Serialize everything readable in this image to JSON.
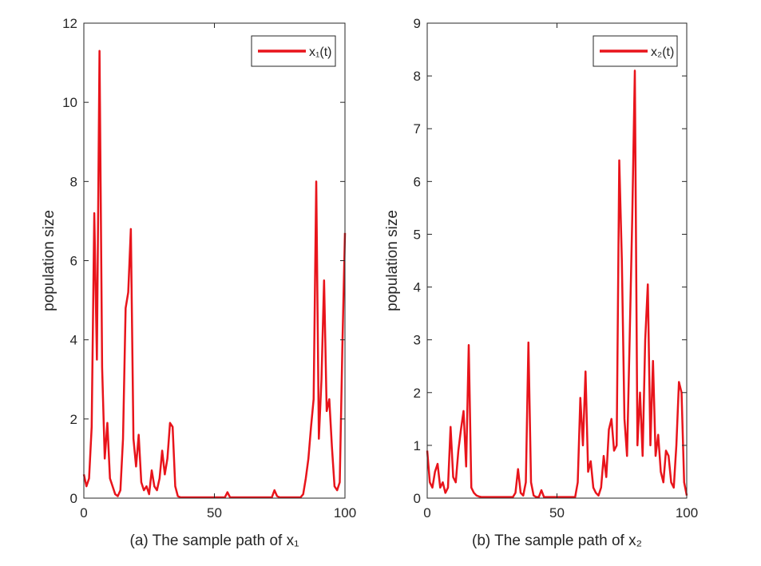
{
  "chart_data": [
    {
      "type": "line",
      "xlabel": "(a) The sample path of x₁",
      "ylabel": "population size",
      "x": [
        0,
        1,
        2,
        3,
        4,
        5,
        6,
        7,
        8,
        9,
        10,
        11,
        12,
        13,
        14,
        15,
        16,
        17,
        18,
        19,
        20,
        21,
        22,
        23,
        24,
        25,
        26,
        27,
        28,
        29,
        30,
        31,
        32,
        33,
        34,
        35,
        36,
        37,
        38,
        39,
        40,
        41,
        42,
        43,
        44,
        45,
        46,
        47,
        48,
        49,
        50,
        51,
        52,
        53,
        54,
        55,
        56,
        57,
        58,
        59,
        60,
        61,
        62,
        63,
        64,
        65,
        66,
        67,
        68,
        69,
        70,
        71,
        72,
        73,
        74,
        75,
        76,
        77,
        78,
        79,
        80,
        81,
        82,
        83,
        84,
        85,
        86,
        87,
        88,
        89,
        90,
        91,
        92,
        93,
        94,
        95,
        96,
        97,
        98,
        99,
        100
      ],
      "series": [
        {
          "name": "x₁(t)",
          "color": "#e8141b",
          "values": [
            0.6,
            0.3,
            0.5,
            1.8,
            7.2,
            3.5,
            11.3,
            3.3,
            1.0,
            1.9,
            0.5,
            0.3,
            0.1,
            0.05,
            0.2,
            1.5,
            4.8,
            5.2,
            6.8,
            1.5,
            0.8,
            1.6,
            0.4,
            0.2,
            0.3,
            0.1,
            0.7,
            0.3,
            0.2,
            0.5,
            1.2,
            0.6,
            1.0,
            1.9,
            1.8,
            0.3,
            0.05,
            0.02,
            0.02,
            0.02,
            0.02,
            0.02,
            0.02,
            0.02,
            0.02,
            0.02,
            0.02,
            0.02,
            0.02,
            0.02,
            0.02,
            0.02,
            0.02,
            0.02,
            0.02,
            0.15,
            0.02,
            0.02,
            0.02,
            0.02,
            0.02,
            0.02,
            0.02,
            0.02,
            0.02,
            0.02,
            0.02,
            0.02,
            0.02,
            0.02,
            0.02,
            0.02,
            0.02,
            0.2,
            0.05,
            0.02,
            0.02,
            0.02,
            0.02,
            0.02,
            0.02,
            0.02,
            0.02,
            0.02,
            0.1,
            0.5,
            1.0,
            1.8,
            2.5,
            8.0,
            1.5,
            3.0,
            5.5,
            2.2,
            2.5,
            1.3,
            0.3,
            0.2,
            0.4,
            3.8,
            6.7
          ]
        }
      ],
      "xlim": [
        0,
        100
      ],
      "xticks": [
        0,
        50,
        100
      ],
      "ylim": [
        0,
        12
      ],
      "yticks": [
        0,
        2,
        4,
        6,
        8,
        10,
        12
      ],
      "legend": "upper right"
    },
    {
      "type": "line",
      "xlabel": "(b) The sample path of x₂",
      "ylabel": "population size",
      "x": [
        0,
        1,
        2,
        3,
        4,
        5,
        6,
        7,
        8,
        9,
        10,
        11,
        12,
        13,
        14,
        15,
        16,
        17,
        18,
        19,
        20,
        21,
        22,
        23,
        24,
        25,
        26,
        27,
        28,
        29,
        30,
        31,
        32,
        33,
        34,
        35,
        36,
        37,
        38,
        39,
        40,
        41,
        42,
        43,
        44,
        45,
        46,
        47,
        48,
        49,
        50,
        51,
        52,
        53,
        54,
        55,
        56,
        57,
        58,
        59,
        60,
        61,
        62,
        63,
        64,
        65,
        66,
        67,
        68,
        69,
        70,
        71,
        72,
        73,
        74,
        75,
        76,
        77,
        78,
        79,
        80,
        81,
        82,
        83,
        84,
        85,
        86,
        87,
        88,
        89,
        90,
        91,
        92,
        93,
        94,
        95,
        96,
        97,
        98,
        99,
        100
      ],
      "series": [
        {
          "name": "x₂(t)",
          "color": "#e8141b",
          "values": [
            0.9,
            0.3,
            0.2,
            0.5,
            0.65,
            0.2,
            0.3,
            0.1,
            0.2,
            1.35,
            0.4,
            0.3,
            0.9,
            1.3,
            1.65,
            0.6,
            2.9,
            0.2,
            0.1,
            0.05,
            0.03,
            0.02,
            0.02,
            0.02,
            0.02,
            0.02,
            0.02,
            0.02,
            0.02,
            0.02,
            0.02,
            0.02,
            0.02,
            0.02,
            0.1,
            0.55,
            0.1,
            0.05,
            0.3,
            2.95,
            0.3,
            0.05,
            0.02,
            0.02,
            0.15,
            0.02,
            0.02,
            0.02,
            0.02,
            0.02,
            0.02,
            0.02,
            0.02,
            0.02,
            0.02,
            0.02,
            0.02,
            0.02,
            0.3,
            1.9,
            1.0,
            2.4,
            0.5,
            0.7,
            0.2,
            0.1,
            0.05,
            0.2,
            0.8,
            0.4,
            1.3,
            1.5,
            0.9,
            1.0,
            6.4,
            4.5,
            1.5,
            0.8,
            3.0,
            5.3,
            8.1,
            1.0,
            2.0,
            0.8,
            3.0,
            4.05,
            1.0,
            2.6,
            0.8,
            1.2,
            0.5,
            0.3,
            0.9,
            0.8,
            0.3,
            0.2,
            1.0,
            2.2,
            2.0,
            0.3,
            0.05
          ]
        }
      ],
      "xlim": [
        0,
        100
      ],
      "xticks": [
        0,
        50,
        100
      ],
      "ylim": [
        0,
        9
      ],
      "yticks": [
        0,
        1,
        2,
        3,
        4,
        5,
        6,
        7,
        8,
        9
      ],
      "legend": "upper right"
    }
  ]
}
